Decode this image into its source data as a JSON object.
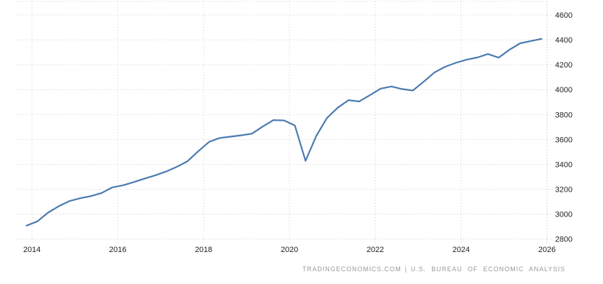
{
  "chart_data": {
    "type": "line",
    "title": "",
    "xlabel": "",
    "ylabel": "",
    "legend": "none",
    "grid": "dotted",
    "x_ticks": [
      2014,
      2016,
      2018,
      2020,
      2022,
      2024,
      2026
    ],
    "y_ticks": [
      2800,
      3000,
      3200,
      3400,
      3600,
      3800,
      4000,
      4200,
      4400,
      4600
    ],
    "ylim": [
      2800,
      4600
    ],
    "xlim_years": [
      2013.67,
      2026.02
    ],
    "series": [
      {
        "name": "value",
        "color": "#4a7aaf",
        "points": [
          [
            2013.875,
            2908
          ],
          [
            2014.125,
            2942
          ],
          [
            2014.375,
            3012
          ],
          [
            2014.625,
            3064
          ],
          [
            2014.875,
            3105
          ],
          [
            2015.125,
            3128
          ],
          [
            2015.375,
            3145
          ],
          [
            2015.625,
            3170
          ],
          [
            2015.875,
            3215
          ],
          [
            2016.125,
            3232
          ],
          [
            2016.375,
            3258
          ],
          [
            2016.625,
            3285
          ],
          [
            2016.875,
            3312
          ],
          [
            2017.125,
            3342
          ],
          [
            2017.375,
            3380
          ],
          [
            2017.625,
            3425
          ],
          [
            2017.875,
            3505
          ],
          [
            2018.125,
            3580
          ],
          [
            2018.375,
            3612
          ],
          [
            2018.625,
            3622
          ],
          [
            2018.875,
            3633
          ],
          [
            2019.125,
            3646
          ],
          [
            2019.375,
            3703
          ],
          [
            2019.625,
            3755
          ],
          [
            2019.875,
            3753
          ],
          [
            2020.125,
            3712
          ],
          [
            2020.375,
            3428
          ],
          [
            2020.625,
            3628
          ],
          [
            2020.875,
            3772
          ],
          [
            2021.125,
            3855
          ],
          [
            2021.375,
            3915
          ],
          [
            2021.625,
            3905
          ],
          [
            2021.875,
            3955
          ],
          [
            2022.125,
            4008
          ],
          [
            2022.375,
            4025
          ],
          [
            2022.625,
            4005
          ],
          [
            2022.875,
            3993
          ],
          [
            2023.125,
            4063
          ],
          [
            2023.375,
            4137
          ],
          [
            2023.625,
            4183
          ],
          [
            2023.875,
            4215
          ],
          [
            2024.125,
            4240
          ],
          [
            2024.375,
            4258
          ],
          [
            2024.625,
            4286
          ],
          [
            2024.875,
            4257
          ],
          [
            2025.125,
            4320
          ],
          [
            2025.375,
            4372
          ],
          [
            2025.625,
            4390
          ],
          [
            2025.875,
            4408
          ]
        ]
      }
    ]
  },
  "colors": {
    "line": "#4a7aaf",
    "grid": "#cccccc",
    "axis_label": "#222222",
    "footer_text": "#999999",
    "background": "#ffffff"
  },
  "footer": {
    "source": "TRADINGECONOMICS.COM",
    "separator": "|",
    "attribution": "U.S. BUREAU OF ECONOMIC ANALYSIS"
  }
}
